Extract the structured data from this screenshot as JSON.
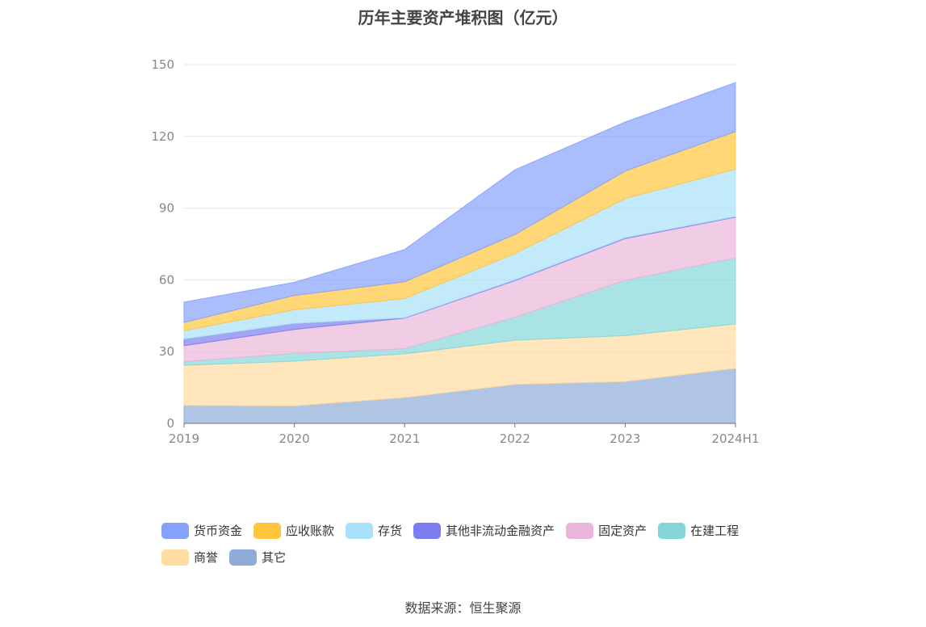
{
  "colors": {
    "货币资金": "#86a1fb",
    "应收账款": "#ffc63d",
    "存货": "#a9e1fa",
    "其他非流动金融资产": "#7a7ef0",
    "固定资产": "#e9b6da",
    "在建工程": "#84d7d8",
    "商誉": "#ffdca0",
    "其它": "#8eabd9"
  },
  "chart_data": {
    "type": "area",
    "stacked": true,
    "title": "历年主要资产堆积图（亿元）",
    "source": "数据来源：恒生聚源",
    "categories": [
      "2019",
      "2020",
      "2021",
      "2022",
      "2023",
      "2024H1"
    ],
    "y_ticks": [
      "0",
      "30",
      "60",
      "90",
      "120",
      "150"
    ],
    "ylim": [
      0,
      150
    ],
    "grid": true,
    "legend_position": "bottom",
    "series": [
      {
        "name": "其它",
        "values": [
          7.5,
          7.3,
          10.8,
          16.3,
          17.5,
          23.0
        ]
      },
      {
        "name": "商誉",
        "values": [
          16.8,
          18.7,
          18.3,
          18.5,
          19.2,
          18.6
        ]
      },
      {
        "name": "在建工程",
        "values": [
          1.5,
          3.3,
          2.1,
          9.6,
          23.1,
          27.6
        ]
      },
      {
        "name": "固定资产",
        "values": [
          6.7,
          10.0,
          12.8,
          15.3,
          17.5,
          17.0
        ]
      },
      {
        "name": "其他非流动金融资产",
        "values": [
          2.8,
          2.5,
          0.2,
          0.3,
          0.3,
          0.3
        ]
      },
      {
        "name": "存货",
        "values": [
          3.5,
          5.7,
          8.0,
          11.0,
          16.4,
          19.8
        ]
      },
      {
        "name": "应收账款",
        "values": [
          3.4,
          6.0,
          7.0,
          8.0,
          11.5,
          15.7
        ]
      },
      {
        "name": "货币资金",
        "values": [
          8.5,
          5.5,
          13.5,
          27.0,
          20.5,
          20.5
        ]
      }
    ],
    "legend": [
      [
        "货币资金",
        "应收账款",
        "存货",
        "其他非流动金融资产",
        "固定资产",
        "在建工程"
      ],
      [
        "商誉",
        "其它"
      ]
    ]
  }
}
